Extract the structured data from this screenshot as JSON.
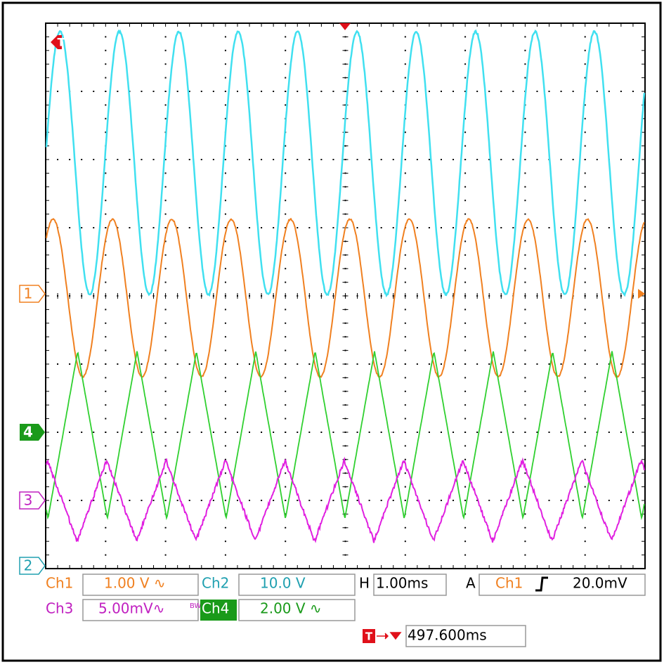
{
  "markers": {
    "ch1": "1",
    "ch2": "2",
    "ch3": "3",
    "ch4": "4",
    "trigger": "T"
  },
  "readouts": {
    "ch1": {
      "label": "Ch1",
      "value": "1.00 V ∿"
    },
    "ch2": {
      "label": "Ch2",
      "value": "10.0 V"
    },
    "ch3": {
      "label": "Ch3",
      "value": "5.00mV∿",
      "bw": "BW"
    },
    "ch4": {
      "label": "Ch4",
      "value": "2.00 V ∿"
    },
    "horizontal": {
      "label": "H",
      "value": "1.00ms"
    },
    "trigger": {
      "label": "A",
      "source": "Ch1",
      "level": "20.0mV"
    },
    "position": {
      "marker": "T",
      "value": "497.600ms"
    }
  }
}
